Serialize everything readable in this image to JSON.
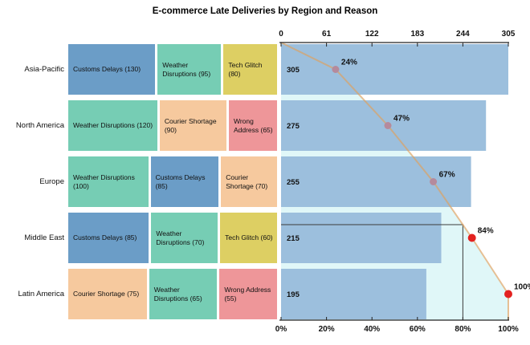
{
  "title": "E-commerce Late Deliveries by Region and Reason",
  "colors": {
    "reasons": {
      "Customs Delays": "#6b9dc7",
      "Weather Disruptions": "#76cdb4",
      "Tech Glitch": "#ddcf63",
      "Courier Shortage": "#f6c99e",
      "Wrong Address": "#ee9699"
    },
    "bar": "#9cbfdd",
    "cumulative_line": "#e0a05c",
    "cumulative_area": "#e0f7f8",
    "dot": "#b58a9c",
    "dot_highlight": "#e32220",
    "reference_line": "#3c3c3c",
    "axis": "#222222"
  },
  "chart_data": {
    "type": "bar",
    "subtype": "pareto-with-mosaic",
    "orientation": "horizontal",
    "title": "E-commerce Late Deliveries by Region and Reason",
    "categories": [
      "Asia-Pacific",
      "North America",
      "Europe",
      "Middle East",
      "Latin America"
    ],
    "series": [
      {
        "name": "total-late-deliveries",
        "type": "bar",
        "values": [
          305,
          275,
          255,
          215,
          195
        ]
      },
      {
        "name": "cumulative-percentage",
        "type": "line",
        "values_pct": [
          24,
          47,
          67,
          84,
          100
        ],
        "labels": [
          "24%",
          "47%",
          "67%",
          "84%",
          "100%"
        ],
        "highlight_from_pct": 80
      }
    ],
    "top_axis": {
      "range": [
        0,
        305
      ],
      "ticks": [
        0,
        61,
        122,
        183,
        244,
        305
      ]
    },
    "bottom_axis": {
      "range_pct": [
        0,
        100
      ],
      "ticks": [
        "0%",
        "20%",
        "40%",
        "60%",
        "80%",
        "100%"
      ]
    },
    "reference_pct": 80,
    "mosaic_rows": [
      {
        "region": "Asia-Pacific",
        "total": 305,
        "reasons": [
          {
            "label": "Customs Delays",
            "value": 130
          },
          {
            "label": "Weather Disruptions",
            "value": 95
          },
          {
            "label": "Tech Glitch",
            "value": 80
          }
        ]
      },
      {
        "region": "North America",
        "total": 275,
        "reasons": [
          {
            "label": "Weather Disruptions",
            "value": 120
          },
          {
            "label": "Courier Shortage",
            "value": 90
          },
          {
            "label": "Wrong Address",
            "value": 65
          }
        ]
      },
      {
        "region": "Europe",
        "total": 255,
        "reasons": [
          {
            "label": "Weather Disruptions",
            "value": 100
          },
          {
            "label": "Customs Delays",
            "value": 85
          },
          {
            "label": "Courier Shortage",
            "value": 70
          }
        ]
      },
      {
        "region": "Middle East",
        "total": 215,
        "reasons": [
          {
            "label": "Customs Delays",
            "value": 85
          },
          {
            "label": "Weather Disruptions",
            "value": 70
          },
          {
            "label": "Tech Glitch",
            "value": 60
          }
        ]
      },
      {
        "region": "Latin America",
        "total": 195,
        "reasons": [
          {
            "label": "Courier Shortage",
            "value": 75
          },
          {
            "label": "Weather Disruptions",
            "value": 65
          },
          {
            "label": "Wrong Address",
            "value": 55
          }
        ]
      }
    ]
  }
}
